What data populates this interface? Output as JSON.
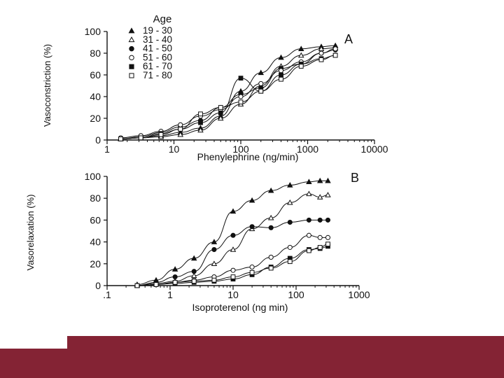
{
  "colors": {
    "ink": "#111111",
    "footer": "#842334"
  },
  "legend": {
    "title": "Age",
    "entries": [
      {
        "label": "19  -  30",
        "marker": "triangle-filled"
      },
      {
        "label": "31  -  40",
        "marker": "triangle-open"
      },
      {
        "label": "41  -  50",
        "marker": "circle-filled"
      },
      {
        "label": "51  -  60",
        "marker": "circle-open"
      },
      {
        "label": "61  -  70",
        "marker": "square-filled"
      },
      {
        "label": "71  -  80",
        "marker": "square-open"
      }
    ]
  },
  "chart_data": [
    {
      "type": "scatter",
      "panel_label": "A",
      "xlabel": "Phenylephrine (ng/min)",
      "ylabel": "Vasoconstriction (%)",
      "xscale": "log",
      "xlim": [
        1,
        10000
      ],
      "ylim": [
        0,
        100
      ],
      "xticks": [
        1,
        10,
        100,
        1000,
        10000
      ],
      "xtick_labels": [
        "1",
        "10",
        "100",
        "1000",
        "10000"
      ],
      "yticks": [
        0,
        20,
        40,
        60,
        80,
        100
      ],
      "ytick_labels": [
        "0",
        "20",
        "40",
        "60",
        "80",
        "100"
      ],
      "fitted_curves": true,
      "series": [
        {
          "name": "19  -  30",
          "marker": "triangle-filled",
          "x": [
            1.6,
            3.2,
            6.4,
            12.5,
            25,
            50,
            100,
            200,
            400,
            800,
            1600,
            2600
          ],
          "y": [
            1,
            2,
            4,
            7,
            11,
            22,
            45,
            62,
            76,
            84,
            86,
            87
          ]
        },
        {
          "name": "31  -  40",
          "marker": "triangle-open",
          "x": [
            1.6,
            3.2,
            6.4,
            12.5,
            25,
            50,
            100,
            200,
            400,
            800,
            1600,
            2600
          ],
          "y": [
            1,
            2,
            3,
            5,
            9,
            20,
            33,
            50,
            68,
            78,
            84,
            85
          ]
        },
        {
          "name": "41  -  50",
          "marker": "circle-filled",
          "x": [
            1.6,
            3.2,
            6.4,
            12.5,
            25,
            50,
            100,
            200,
            400,
            800,
            1600,
            2600
          ],
          "y": [
            1,
            3,
            7,
            12,
            18,
            30,
            42,
            48,
            66,
            70,
            80,
            83
          ]
        },
        {
          "name": "51  -  60",
          "marker": "circle-open",
          "x": [
            1.6,
            3.2,
            6.4,
            12.5,
            25,
            50,
            100,
            200,
            400,
            800,
            1600,
            2600
          ],
          "y": [
            2,
            4,
            8,
            14,
            22,
            28,
            40,
            52,
            64,
            72,
            80,
            84
          ]
        },
        {
          "name": "61  -  70",
          "marker": "square-filled",
          "x": [
            1.6,
            3.2,
            6.4,
            12.5,
            25,
            50,
            100,
            200,
            400,
            800,
            1600,
            2600
          ],
          "y": [
            1,
            2,
            6,
            10,
            16,
            25,
            57,
            45,
            60,
            70,
            75,
            78
          ]
        },
        {
          "name": "71  -  80",
          "marker": "square-open",
          "x": [
            1.6,
            3.2,
            6.4,
            12.5,
            25,
            50,
            100,
            200,
            400,
            800,
            1600,
            2600
          ],
          "y": [
            1,
            2,
            5,
            10,
            24,
            30,
            35,
            45,
            56,
            68,
            74,
            78
          ]
        }
      ]
    },
    {
      "type": "scatter",
      "panel_label": "B",
      "xlabel": "Isoproterenol (ng min)",
      "ylabel": "Vasorelaxation (%)",
      "xscale": "log",
      "xlim": [
        0.1,
        1000
      ],
      "ylim": [
        0,
        100
      ],
      "xticks": [
        0.1,
        1,
        10,
        100,
        1000
      ],
      "xtick_labels": [
        ".1",
        "1",
        "10",
        "100",
        "1000"
      ],
      "yticks": [
        0,
        20,
        40,
        60,
        80,
        100
      ],
      "ytick_labels": [
        "0",
        "20",
        "40",
        "60",
        "80",
        "100"
      ],
      "fitted_curves": true,
      "series": [
        {
          "name": "19  -  30",
          "marker": "triangle-filled",
          "x": [
            0.3,
            0.6,
            1.2,
            2.4,
            5,
            10,
            20,
            40,
            80,
            160,
            240,
            320
          ],
          "y": [
            1,
            5,
            15,
            25,
            40,
            68,
            78,
            87,
            92,
            95,
            96,
            96
          ]
        },
        {
          "name": "31  -  40",
          "marker": "triangle-open",
          "x": [
            0.3,
            0.6,
            1.2,
            2.4,
            5,
            10,
            20,
            40,
            80,
            160,
            240,
            320
          ],
          "y": [
            0,
            2,
            4,
            9,
            20,
            33,
            52,
            62,
            76,
            84,
            81,
            83
          ]
        },
        {
          "name": "41  -  50",
          "marker": "circle-filled",
          "x": [
            0.3,
            0.6,
            1.2,
            2.4,
            5,
            10,
            20,
            40,
            80,
            160,
            240,
            320
          ],
          "y": [
            0,
            3,
            8,
            13,
            33,
            46,
            54,
            53,
            58,
            60,
            60,
            60
          ]
        },
        {
          "name": "51  -  60",
          "marker": "circle-open",
          "x": [
            0.3,
            0.6,
            1.2,
            2.4,
            5,
            10,
            20,
            40,
            80,
            160,
            240,
            320
          ],
          "y": [
            0,
            1,
            3,
            5,
            8,
            14,
            17,
            26,
            35,
            46,
            44,
            44
          ]
        },
        {
          "name": "61  -  70",
          "marker": "square-filled",
          "x": [
            0.3,
            0.6,
            1.2,
            2.4,
            5,
            10,
            20,
            40,
            80,
            160,
            240,
            320
          ],
          "y": [
            0,
            1,
            2,
            3,
            4,
            6,
            10,
            17,
            25,
            33,
            34,
            36
          ]
        },
        {
          "name": "71  -  80",
          "marker": "square-open",
          "x": [
            0.3,
            0.6,
            1.2,
            2.4,
            5,
            10,
            20,
            40,
            80,
            160,
            240,
            320
          ],
          "y": [
            0,
            1,
            3,
            4,
            5,
            8,
            12,
            16,
            22,
            32,
            35,
            38
          ]
        }
      ]
    }
  ]
}
